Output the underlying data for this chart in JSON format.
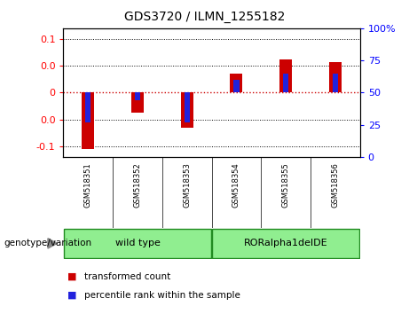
{
  "title": "GDS3720 / ILMN_1255182",
  "samples": [
    "GSM518351",
    "GSM518352",
    "GSM518353",
    "GSM518354",
    "GSM518355",
    "GSM518356"
  ],
  "transformed_counts": [
    -0.105,
    -0.038,
    -0.065,
    0.035,
    0.062,
    0.057
  ],
  "percentile_ranks_raw": [
    22,
    43,
    22,
    62,
    68,
    68
  ],
  "ylim_left": [
    -0.12,
    0.12
  ],
  "ylim_right": [
    0,
    100
  ],
  "yticks_left": [
    -0.1,
    -0.05,
    0,
    0.05,
    0.1
  ],
  "yticks_right": [
    0,
    25,
    50,
    75,
    100
  ],
  "bar_color_red": "#CC0000",
  "bar_color_blue": "#2222DD",
  "zero_line_color": "#CC0000",
  "background_color": "#ffffff",
  "genotype_label": "genotype/variation",
  "legend_red": "transformed count",
  "legend_blue": "percentile rank within the sample",
  "wild_type_color": "#90EE90",
  "sample_box_color": "#C8C8C8",
  "group_border_color": "#228B22"
}
